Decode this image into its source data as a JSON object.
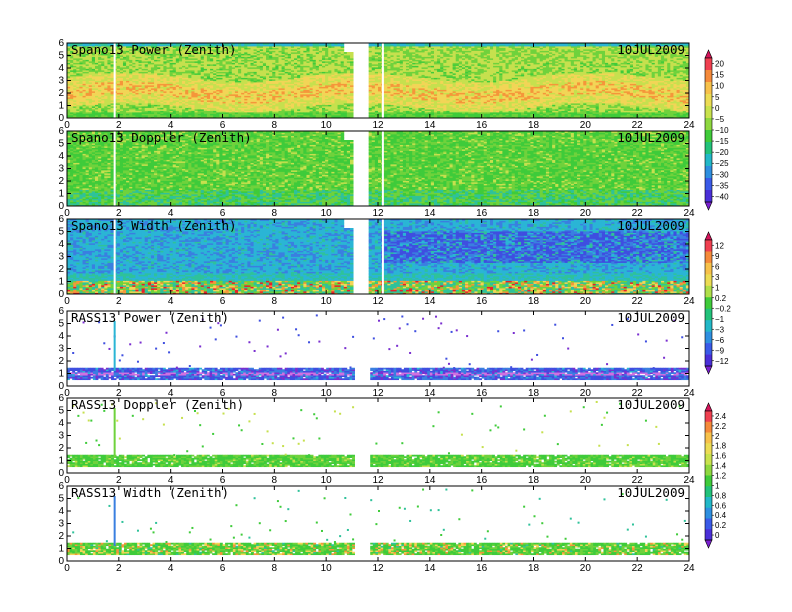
{
  "chart_data": [
    {
      "type": "heatmap",
      "title": "Spano13 Power (Zenith)",
      "date": "10JUL2009",
      "xlim": [
        0,
        24
      ],
      "ylim": [
        0,
        6
      ],
      "x_ticks": [
        0,
        2,
        4,
        6,
        8,
        10,
        12,
        14,
        16,
        18,
        20,
        22,
        24
      ],
      "y_ticks": [
        0,
        1,
        2,
        3,
        4,
        5,
        6
      ],
      "data_gap": [
        11.0,
        11.6
      ],
      "colorbar_group": 0,
      "pattern": "power"
    },
    {
      "type": "heatmap",
      "title": "Spano13 Doppler (Zenith)",
      "date": "10JUL2009",
      "xlim": [
        0,
        24
      ],
      "ylim": [
        0,
        6
      ],
      "x_ticks": [
        0,
        2,
        4,
        6,
        8,
        10,
        12,
        14,
        16,
        18,
        20,
        22,
        24
      ],
      "y_ticks": [
        0,
        1,
        2,
        3,
        4,
        5,
        6
      ],
      "data_gap": [
        11.0,
        11.6
      ],
      "colorbar_group": 0,
      "pattern": "doppler"
    },
    {
      "type": "heatmap",
      "title": "Spano13 Width (Zenith)",
      "date": "10JUL2009",
      "xlim": [
        0,
        24
      ],
      "ylim": [
        0,
        6
      ],
      "x_ticks": [
        0,
        2,
        4,
        6,
        8,
        10,
        12,
        14,
        16,
        18,
        20,
        22,
        24
      ],
      "y_ticks": [
        0,
        1,
        2,
        3,
        4,
        5,
        6
      ],
      "data_gap": [
        11.0,
        11.6
      ],
      "colorbar_group": 1,
      "pattern": "width"
    },
    {
      "type": "heatmap",
      "title": "RASS13 Power (Zenith)",
      "date": "10JUL2009",
      "xlim": [
        0,
        24
      ],
      "ylim": [
        0,
        6
      ],
      "x_ticks": [
        0,
        2,
        4,
        6,
        8,
        10,
        12,
        14,
        16,
        18,
        20,
        22,
        24
      ],
      "y_ticks": [
        0,
        1,
        2,
        3,
        4,
        5,
        6
      ],
      "data_gap": [
        11.0,
        11.6
      ],
      "colorbar_group": 1,
      "pattern": "rass_power"
    },
    {
      "type": "heatmap",
      "title": "RASS13 Doppler (Zenith)",
      "date": "10JUL2009",
      "xlim": [
        0,
        24
      ],
      "ylim": [
        0,
        6
      ],
      "x_ticks": [
        0,
        2,
        4,
        6,
        8,
        10,
        12,
        14,
        16,
        18,
        20,
        22,
        24
      ],
      "y_ticks": [
        0,
        1,
        2,
        3,
        4,
        5,
        6
      ],
      "data_gap": [
        11.0,
        11.6
      ],
      "colorbar_group": 2,
      "pattern": "rass_doppler"
    },
    {
      "type": "heatmap",
      "title": "RASS13 Width (Zenith)",
      "date": "10JUL2009",
      "xlim": [
        0,
        24
      ],
      "ylim": [
        0,
        6
      ],
      "x_ticks": [
        0,
        2,
        4,
        6,
        8,
        10,
        12,
        14,
        16,
        18,
        20,
        22,
        24
      ],
      "y_ticks": [
        0,
        1,
        2,
        3,
        4,
        5,
        6
      ],
      "data_gap": [
        11.0,
        11.6
      ],
      "colorbar_group": 2,
      "pattern": "rass_width"
    }
  ],
  "colorbars": [
    {
      "labels": [
        "20",
        "15",
        "10",
        "5",
        "0",
        "−5",
        "−10",
        "−15",
        "−20",
        "−25",
        "−30",
        "−35",
        "−40"
      ],
      "colors": [
        "#d4145a",
        "#f04050",
        "#f58a3a",
        "#f7c14a",
        "#ecdc54",
        "#c9e24d",
        "#8ed83f",
        "#3fcb3a",
        "#22c27a",
        "#22b8c8",
        "#2e8fe0",
        "#3a5ae8",
        "#4a2fd8",
        "#7a1fd0"
      ]
    },
    {
      "labels": [
        "12",
        "9",
        "6",
        "3",
        "1",
        "0.2",
        "−0.2",
        "−1",
        "−3",
        "−6",
        "−9",
        "−12"
      ],
      "colors": [
        "#d4145a",
        "#f04050",
        "#f58a3a",
        "#f7c14a",
        "#ecdc54",
        "#b0df4a",
        "#3fcb3a",
        "#22c27a",
        "#22b8c8",
        "#2e8fe0",
        "#3a5ae8",
        "#4a2fd8",
        "#7a1fd0"
      ]
    },
    {
      "labels": [
        "2.4",
        "2.2",
        "2",
        "1.8",
        "1.6",
        "1.4",
        "1.2",
        "1",
        "0.8",
        "0.6",
        "0.4",
        "0.2",
        "0"
      ],
      "colors": [
        "#d4145a",
        "#f04050",
        "#f58a3a",
        "#f7c14a",
        "#ecdc54",
        "#c9e24d",
        "#8ed83f",
        "#3fcb3a",
        "#22c27a",
        "#22b8c8",
        "#2e8fe0",
        "#3a5ae8",
        "#4a2fd8",
        "#7a1fd0"
      ]
    }
  ],
  "palette": {
    "red": "#e8202a",
    "orange": "#f5963a",
    "yellow": "#f2d556",
    "yellowgreen": "#c6e04e",
    "green": "#6fd23c",
    "brightgreen": "#3fcb3a",
    "teal": "#2fc29a",
    "cyan": "#2ab5d5",
    "blue": "#3a7fe0",
    "indigo": "#3f4fe0",
    "violet": "#7a2fd0"
  }
}
